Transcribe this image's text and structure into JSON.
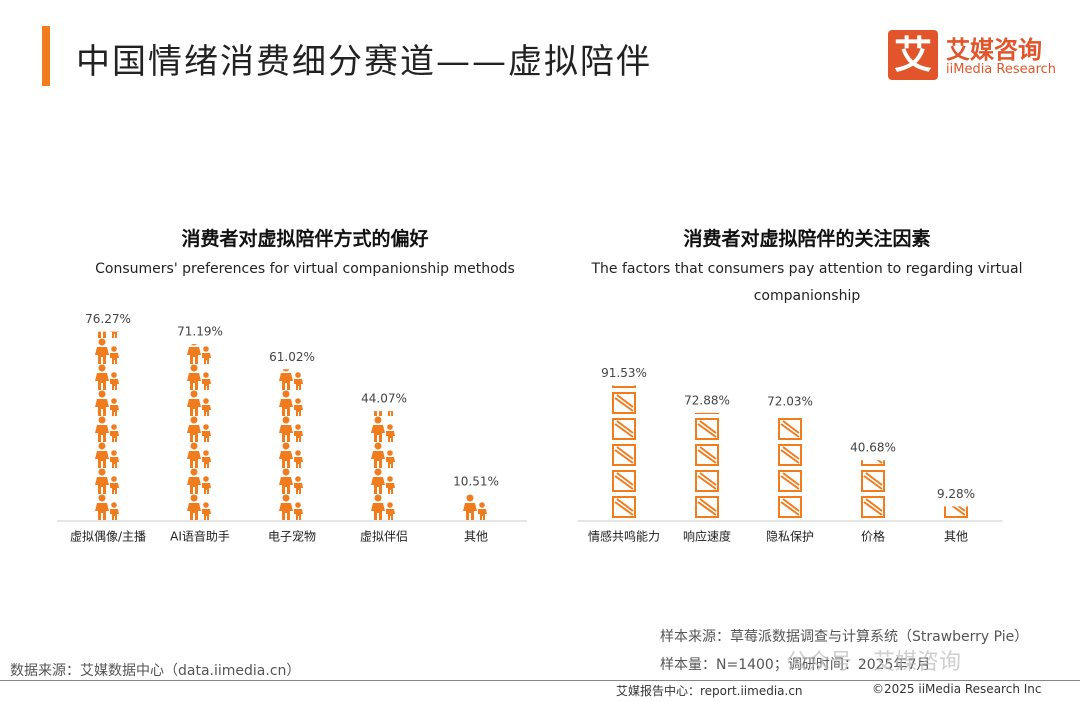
{
  "header": {
    "title": "中国情绪消费细分赛道——虚拟陪伴",
    "logo_mark": "艾",
    "logo_name": "艾媒咨询",
    "logo_sub": "iiMedia Research"
  },
  "chart_data": [
    {
      "type": "pictograph",
      "icon": "person",
      "title": "消费者对虚拟陪伴方式的偏好",
      "subtitle": "Consumers' preferences for virtual companionship methods",
      "categories": [
        "虚拟偶像/主播",
        "AI语音助手",
        "电子宠物",
        "虚拟伴侣",
        "其他"
      ],
      "values": [
        76.27,
        71.19,
        61.02,
        44.07,
        10.51
      ],
      "value_labels": [
        "76.27%",
        "71.19%",
        "61.02%",
        "44.07%",
        "10.51%"
      ],
      "color": "#f07c1e"
    },
    {
      "type": "pictograph",
      "icon": "box",
      "title": "消费者对虚拟陪伴的关注因素",
      "subtitle": "The factors that consumers pay attention to regarding virtual companionship",
      "categories": [
        "情感共鸣能力",
        "响应速度",
        "隐私保护",
        "价格",
        "其他"
      ],
      "values": [
        91.53,
        72.88,
        72.03,
        40.68,
        9.28
      ],
      "value_labels": [
        "91.53%",
        "72.88%",
        "72.03%",
        "40.68%",
        "9.28%"
      ],
      "color": "#f07c1e"
    }
  ],
  "footer": {
    "sample_source": "样本来源：草莓派数据调查与计算系统（Strawberry Pie）",
    "sample_size": "样本量：N=1400；调研时间：2025年7月",
    "data_source": "数据来源：艾媒数据中心（data.iimedia.cn）",
    "watermark": "公众号 · 艾媒咨询",
    "report_center": "艾媒报告中心：report.iimedia.cn",
    "copyright": "©2025 iiMedia Research Inc"
  }
}
